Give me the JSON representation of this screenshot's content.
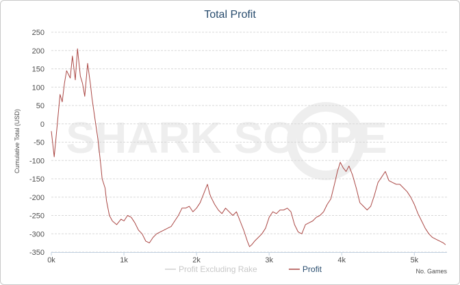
{
  "chart_data": {
    "type": "line",
    "title": "Total Profit",
    "ylabel": "Cumulative Total (USD)",
    "xlabel": "No. Games",
    "x_ticks": [
      "0k",
      "1k",
      "2k",
      "3k",
      "4k",
      "5k"
    ],
    "y_ticks": [
      "250",
      "200",
      "150",
      "100",
      "50",
      "0",
      "-50",
      "-100",
      "-150",
      "-200",
      "-250",
      "-300",
      "-350"
    ],
    "xlim": [
      0,
      5450
    ],
    "ylim": [
      -350,
      250
    ],
    "grid": true,
    "legend_position": "bottom-center",
    "watermark": "SHARK SCOPE",
    "series": [
      {
        "name": "Profit Excluding Rake",
        "color": "#d0d0d0",
        "visible": false,
        "x": [],
        "y": []
      },
      {
        "name": "Profit",
        "color": "#aa4643",
        "visible": true,
        "x": [
          0,
          40,
          80,
          120,
          150,
          180,
          210,
          260,
          290,
          330,
          360,
          400,
          430,
          460,
          500,
          540,
          560,
          600,
          640,
          680,
          700,
          740,
          760,
          800,
          840,
          900,
          960,
          1000,
          1050,
          1100,
          1150,
          1200,
          1250,
          1300,
          1350,
          1400,
          1450,
          1500,
          1550,
          1600,
          1650,
          1700,
          1750,
          1800,
          1850,
          1900,
          1950,
          2000,
          2050,
          2100,
          2150,
          2180,
          2200,
          2250,
          2300,
          2350,
          2400,
          2450,
          2500,
          2550,
          2600,
          2650,
          2700,
          2730,
          2760,
          2800,
          2850,
          2900,
          2950,
          3000,
          3050,
          3100,
          3150,
          3200,
          3250,
          3300,
          3350,
          3400,
          3450,
          3500,
          3550,
          3600,
          3650,
          3700,
          3750,
          3800,
          3850,
          3900,
          3940,
          3980,
          4020,
          4060,
          4100,
          4150,
          4200,
          4250,
          4300,
          4350,
          4400,
          4450,
          4500,
          4550,
          4600,
          4650,
          4700,
          4750,
          4800,
          4850,
          4900,
          4950,
          5000,
          5050,
          5100,
          5150,
          5200,
          5250,
          5300,
          5350,
          5400,
          5430
        ],
        "y": [
          -20,
          -90,
          -5,
          80,
          60,
          110,
          145,
          125,
          185,
          120,
          205,
          130,
          110,
          75,
          165,
          105,
          70,
          15,
          -40,
          -110,
          -150,
          -175,
          -210,
          -250,
          -265,
          -275,
          -260,
          -265,
          -250,
          -255,
          -270,
          -290,
          -300,
          -320,
          -325,
          -310,
          -300,
          -295,
          -290,
          -285,
          -280,
          -265,
          -250,
          -230,
          -230,
          -225,
          -240,
          -230,
          -215,
          -190,
          -165,
          -190,
          -200,
          -220,
          -235,
          -245,
          -230,
          -240,
          -250,
          -240,
          -265,
          -290,
          -320,
          -335,
          -330,
          -320,
          -310,
          -300,
          -285,
          -255,
          -240,
          -245,
          -235,
          -235,
          -230,
          -240,
          -275,
          -295,
          -300,
          -275,
          -270,
          -265,
          -255,
          -250,
          -240,
          -220,
          -205,
          -165,
          -130,
          -105,
          -120,
          -130,
          -115,
          -140,
          -175,
          -215,
          -225,
          -235,
          -225,
          -195,
          -160,
          -145,
          -130,
          -155,
          -160,
          -165,
          -165,
          -175,
          -185,
          -200,
          -220,
          -245,
          -265,
          -285,
          -300,
          -310,
          -315,
          -320,
          -325,
          -330
        ]
      }
    ]
  }
}
